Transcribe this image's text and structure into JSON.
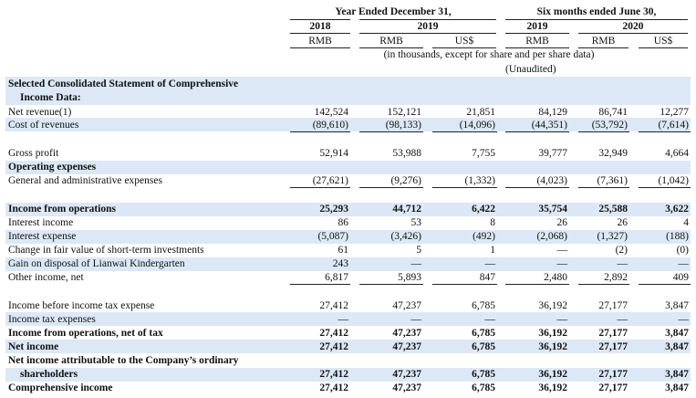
{
  "header": {
    "group_year": "Year Ended December 31,",
    "group_six": "Six months ended June 30,",
    "years": [
      "2018",
      "2019",
      "2019",
      "2020"
    ],
    "currencies": [
      "RMB",
      "RMB",
      "US$",
      "RMB",
      "RMB",
      "US$"
    ],
    "note": "(in thousands, except for share and per share data)",
    "unaudited": "(Unaudited)"
  },
  "section_title_line1": "Selected Consolidated Statement of Comprehensive",
  "section_title_line2": "Income Data:",
  "rows": [
    {
      "label": "Net revenue(1)",
      "vals": [
        "142,524",
        "152,121",
        "21,851",
        "84,129",
        "86,741",
        "12,277"
      ]
    },
    {
      "label": "Cost of revenues",
      "vals": [
        "(89,610)",
        "(98,133)",
        "(14,096)",
        "(44,351)",
        "(53,792)",
        "(7,614)"
      ]
    },
    {
      "label": "Gross profit",
      "vals": [
        "52,914",
        "53,988",
        "7,755",
        "39,777",
        "32,949",
        "4,664"
      ]
    },
    {
      "label": "Operating expenses",
      "vals": [
        "",
        "",
        "",
        "",
        "",
        ""
      ]
    },
    {
      "label": "General and administrative expenses",
      "vals": [
        "(27,621)",
        "(9,276)",
        "(1,332)",
        "(4,023)",
        "(7,361)",
        "(1,042)"
      ]
    },
    {
      "label": "Income from operations",
      "vals": [
        "25,293",
        "44,712",
        "6,422",
        "35,754",
        "25,588",
        "3,622"
      ]
    },
    {
      "label": "Interest income",
      "vals": [
        "86",
        "53",
        "8",
        "26",
        "26",
        "4"
      ]
    },
    {
      "label": "Interest expense",
      "vals": [
        "(5,087)",
        "(3,426)",
        "(492)",
        "(2,068)",
        "(1,327)",
        "(188)"
      ]
    },
    {
      "label": "Change in fair value of short-term investments",
      "vals": [
        "61",
        "5",
        "1",
        "—",
        "(2)",
        "(0)"
      ]
    },
    {
      "label": "Gain on disposal of Lianwai Kindergarten",
      "vals": [
        "243",
        "—",
        "—",
        "—",
        "—",
        "—"
      ]
    },
    {
      "label": "Other income, net",
      "vals": [
        "6,817",
        "5,893",
        "847",
        "2,480",
        "2,892",
        "409"
      ]
    },
    {
      "label": "Income before income tax expense",
      "vals": [
        "27,412",
        "47,237",
        "6,785",
        "36,192",
        "27,177",
        "3,847"
      ]
    },
    {
      "label": "Income tax expenses",
      "vals": [
        "—",
        "—",
        "—",
        "—",
        "—",
        "—"
      ]
    },
    {
      "label": "Income from operations, net of tax",
      "vals": [
        "27,412",
        "47,237",
        "6,785",
        "36,192",
        "27,177",
        "3,847"
      ]
    },
    {
      "label": "Net income",
      "vals": [
        "27,412",
        "47,237",
        "6,785",
        "36,192",
        "27,177",
        "3,847"
      ]
    },
    {
      "label": "Net income attributable to the Company’s ordinary",
      "vals": [
        "",
        "",
        "",
        "",
        "",
        ""
      ]
    },
    {
      "label": "shareholders",
      "vals": [
        "27,412",
        "47,237",
        "6,785",
        "36,192",
        "27,177",
        "3,847"
      ]
    },
    {
      "label": "Comprehensive income",
      "vals": [
        "27,412",
        "47,237",
        "6,785",
        "36,192",
        "27,177",
        "3,847"
      ]
    }
  ]
}
